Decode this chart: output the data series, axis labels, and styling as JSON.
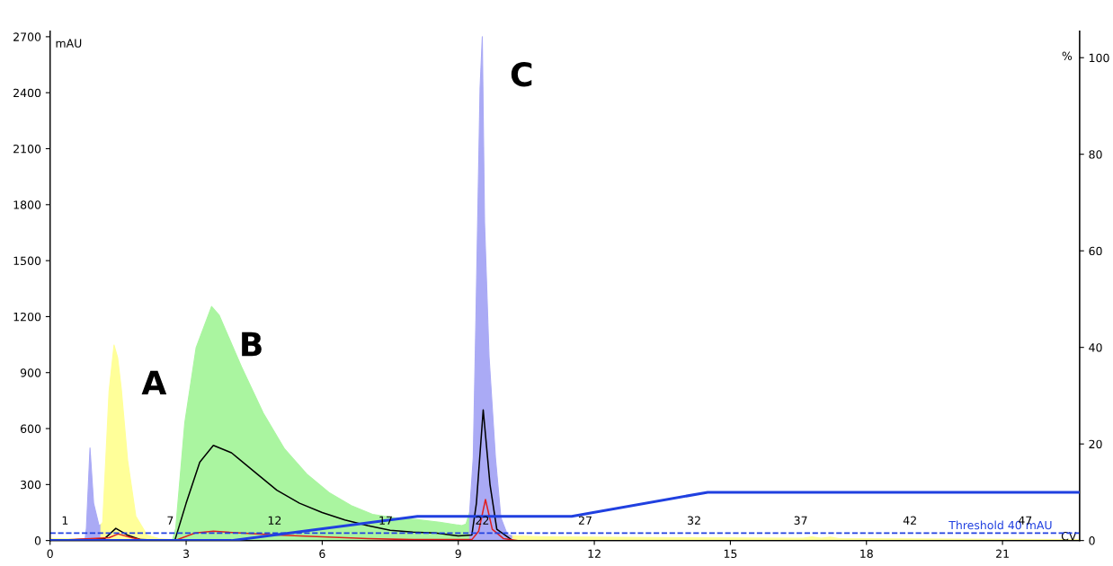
{
  "chart_data": {
    "type": "area",
    "xlabel": "CV",
    "ylabel": "mAU",
    "y2label": "%",
    "xlim": [
      0,
      22.7
    ],
    "ylim": [
      0,
      2730
    ],
    "y2lim": [
      0,
      105.5
    ],
    "xticks": [
      0,
      3,
      6,
      9,
      12,
      15,
      18,
      21
    ],
    "yticks": [
      0,
      300,
      600,
      900,
      1200,
      1500,
      1800,
      2100,
      2400,
      2700
    ],
    "y2ticks": [
      0,
      20,
      40,
      60,
      80,
      100
    ],
    "grid": false,
    "legend": false,
    "series": [
      {
        "color": "#ffff99",
        "x": [
          0,
          0.3,
          0.6,
          0.77
        ],
        "values": [
          10,
          10,
          8,
          5
        ]
      },
      {
        "color": "#aaaaf5",
        "x": [
          0.77,
          0.8,
          0.88,
          0.96,
          1.08,
          1.12
        ],
        "values": [
          5,
          66,
          496,
          200,
          80,
          85
        ]
      },
      {
        "color": "#ffff99",
        "x": [
          1.12,
          1.16,
          1.22,
          1.3,
          1.41,
          1.49,
          1.57,
          1.71,
          1.89,
          2.14,
          2.4,
          2.7
        ],
        "values": [
          85,
          98,
          398,
          800,
          1048,
          980,
          814,
          430,
          131,
          28,
          10,
          5
        ]
      },
      {
        "color": "#aaf5a0",
        "x": [
          2.7,
          2.77,
          2.97,
          3.22,
          3.56,
          3.73,
          4.22,
          4.7,
          5.17,
          5.66,
          6.15,
          6.64,
          7.11,
          7.6,
          8.1,
          8.59,
          9.08,
          9.17,
          9.25
        ],
        "values": [
          5,
          65,
          632,
          1034,
          1254,
          1207,
          931,
          683,
          491,
          356,
          257,
          187,
          140,
          122,
          112,
          98,
          80,
          89,
          150
        ]
      },
      {
        "color": "#aaaaf5",
        "x": [
          9.25,
          9.33,
          9.39,
          9.44,
          9.48,
          9.53,
          9.58,
          9.68,
          9.82,
          9.94,
          10.08,
          10.2
        ],
        "values": [
          150,
          445,
          1203,
          1886,
          2424,
          2700,
          1703,
          983,
          445,
          122,
          33,
          25
        ]
      },
      {
        "color": "#ffff99",
        "x": [
          10.2,
          11,
          14,
          16.6,
          16.8,
          17.0,
          17.2,
          17.4,
          18,
          22.7
        ],
        "values": [
          25,
          20,
          15,
          12,
          20,
          12,
          18,
          10,
          10,
          5
        ]
      },
      {
        "type": "line",
        "color": "#000000",
        "x": [
          0,
          1.2,
          1.45,
          1.7,
          2.0,
          2.75,
          3.0,
          3.3,
          3.6,
          4.0,
          4.5,
          5.0,
          5.5,
          6.0,
          6.5,
          7.0,
          7.5,
          8.0,
          8.5,
          9.0,
          9.3,
          9.4,
          9.55,
          9.7,
          9.85,
          10.2
        ],
        "values": [
          0,
          10,
          65,
          30,
          5,
          0,
          200,
          420,
          510,
          470,
          370,
          270,
          200,
          150,
          110,
          80,
          55,
          45,
          40,
          25,
          30,
          200,
          700,
          300,
          60,
          0
        ]
      },
      {
        "type": "line",
        "color": "#e02020",
        "x": [
          0,
          1.3,
          1.5,
          1.8,
          2.1,
          2.75,
          3.2,
          3.6,
          4.2,
          5.0,
          6.0,
          7.0,
          8.0,
          9.3,
          9.45,
          9.6,
          9.75,
          10.0,
          10.3
        ],
        "values": [
          0,
          15,
          35,
          15,
          0,
          0,
          40,
          50,
          40,
          30,
          20,
          10,
          5,
          5,
          50,
          220,
          60,
          10,
          0
        ]
      },
      {
        "type": "line",
        "axis": "y2",
        "color": "#2040e0",
        "x": [
          0,
          4.0,
          8.1,
          11.5,
          14.5,
          22.7
        ],
        "values": [
          0,
          0,
          5,
          5,
          10,
          10
        ]
      }
    ],
    "ref_lines": [
      {
        "axis": "y",
        "value": 40,
        "label": "Threshold 40 mAU",
        "color": "#2040e0",
        "line_style": "dashed"
      }
    ],
    "annotations": [
      {
        "text": "A",
        "x": 1.41,
        "y": 1048
      },
      {
        "text": "B",
        "x": 3.56,
        "y": 1254
      },
      {
        "text": "C",
        "x": 9.53,
        "y": 2700
      },
      {
        "text": "1",
        "x": 0.33,
        "y": 0
      },
      {
        "text": "7",
        "x": 2.65,
        "y": 0
      },
      {
        "text": "12",
        "x": 4.95,
        "y": 0
      },
      {
        "text": "17",
        "x": 7.4,
        "y": 0
      },
      {
        "text": "22",
        "x": 9.53,
        "y": 0
      },
      {
        "text": "27",
        "x": 11.8,
        "y": 0
      },
      {
        "text": "32",
        "x": 14.2,
        "y": 0
      },
      {
        "text": "37",
        "x": 16.55,
        "y": 0
      },
      {
        "text": "42",
        "x": 18.96,
        "y": 0
      },
      {
        "text": "47",
        "x": 21.5,
        "y": 0
      }
    ]
  }
}
